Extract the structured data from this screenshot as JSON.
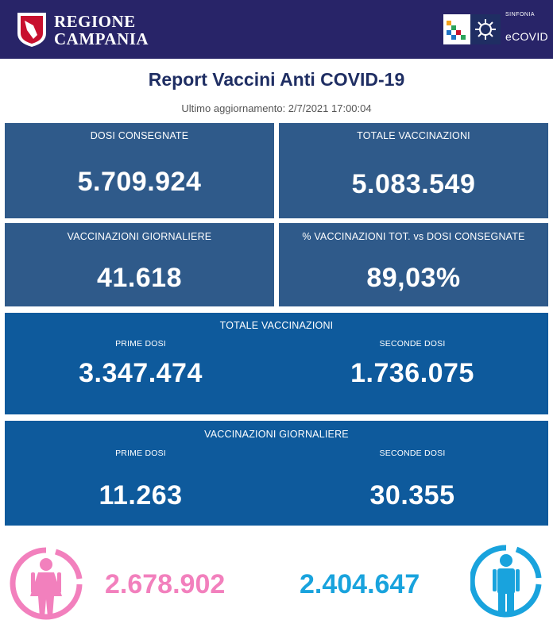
{
  "header": {
    "region_line1": "REGIONE",
    "region_line2": "CAMPANIA",
    "ecovid_tagline": "SINFONIA",
    "ecovid_name": "eCOVID",
    "icons": [
      "region-shield-icon",
      "sinfonia-logo-icon",
      "virus-icon"
    ],
    "colors": {
      "bar": "#282468"
    }
  },
  "report": {
    "title": "Report Vaccini Anti COVID-19",
    "last_update": "Ultimo aggiornamento: 2/7/2021  17:00:04"
  },
  "cards": {
    "dosi_consegnate": {
      "label": "DOSI  CONSEGNATE",
      "value": "5.709.924"
    },
    "totale_vaccinazioni": {
      "label": "TOTALE VACCINAZIONI",
      "value": "5.083.549"
    },
    "vaccinazioni_giornaliere": {
      "label": "VACCINAZIONI GIORNALIERE",
      "value": "41.618"
    },
    "percentuale": {
      "label": "% VACCINAZIONI TOT. vs DOSI CONSEGNATE",
      "value": "89,03%"
    }
  },
  "totale_breakdown": {
    "title": "TOTALE VACCINAZIONI",
    "prime_label": "PRIME DOSI",
    "prime_value": "3.347.474",
    "seconde_label": "SECONDE DOSI",
    "seconde_value": "1.736.075"
  },
  "giornaliere_breakdown": {
    "title": "VACCINAZIONI GIORNALIERE",
    "prime_label": "PRIME DOSI",
    "prime_value": "11.263",
    "seconde_label": "SECONDE DOSI",
    "seconde_value": "30.355"
  },
  "gender": {
    "female_value": "2.678.902",
    "male_value": "2.404.647",
    "female_icon": "female-person-icon",
    "male_icon": "male-person-icon",
    "colors": {
      "female": "#f280bd",
      "male": "#19a3dd"
    }
  },
  "colors": {
    "card_dark": "#2f5a8a",
    "card_mid": "#0e5a9c",
    "title": "#1f2e63"
  }
}
